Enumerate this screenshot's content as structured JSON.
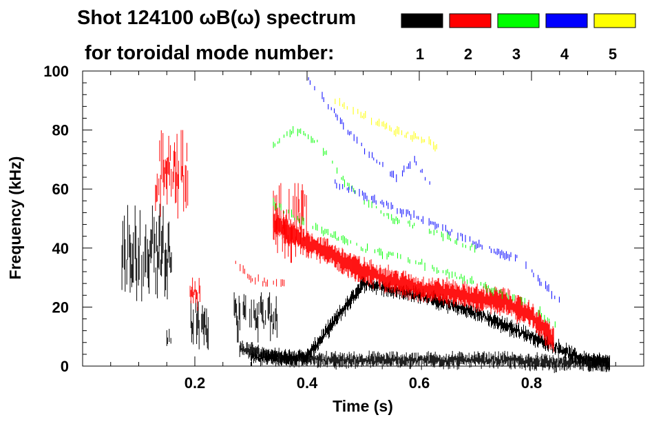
{
  "chart_data": {
    "type": "spectrogram",
    "title_line1": "Shot 124100 ωB(ω) spectrum",
    "title_line2": "for toroidal mode number:",
    "xlabel": "Time (s)",
    "ylabel": "Frequency (kHz)",
    "xlim": [
      0.0,
      1.0
    ],
    "ylim": [
      0,
      100
    ],
    "x_ticks": [
      0.2,
      0.4,
      0.6,
      0.8
    ],
    "x_tick_labels": [
      "0.2",
      "0.4",
      "0.6",
      "0.8"
    ],
    "y_ticks": [
      0,
      20,
      40,
      60,
      80,
      100
    ],
    "y_tick_labels": [
      "0",
      "20",
      "40",
      "60",
      "80",
      "100"
    ],
    "legend": [
      {
        "label": "1",
        "color": "#000000"
      },
      {
        "label": "2",
        "color": "#ff0000"
      },
      {
        "label": "3",
        "color": "#00ff00"
      },
      {
        "label": "4",
        "color": "#0000ff"
      },
      {
        "label": "5",
        "color": "#ffff00"
      }
    ],
    "series": [
      {
        "name": "n=1",
        "color": "#000000",
        "blobs": [
          {
            "t": [
              0.07,
              0.16
            ],
            "f": [
              20,
              55
            ]
          },
          {
            "t": [
              0.19,
              0.225
            ],
            "f": [
              5,
              25
            ]
          },
          {
            "t": [
              0.27,
              0.35
            ],
            "f": [
              8,
              25
            ]
          },
          {
            "t": [
              0.15,
              0.16
            ],
            "f": [
              5,
              15
            ]
          }
        ],
        "ridges": [
          {
            "name": "slow-down",
            "t": [
              0.3,
              0.4,
              0.5,
              0.55,
              0.6,
              0.7,
              0.75,
              0.8,
              0.85,
              0.88,
              0.94
            ],
            "f": [
              3,
              3,
              28,
              26,
              24,
              18,
              14,
              10,
              6,
              3,
              1
            ]
          },
          {
            "name": "base",
            "t": [
              0.28,
              0.35,
              0.45,
              0.55,
              0.65,
              0.75,
              0.85,
              0.94
            ],
            "f": [
              6,
              3,
              2,
              2,
              2,
              2,
              1,
              1
            ]
          }
        ]
      },
      {
        "name": "n=2",
        "color": "#ff0000",
        "blobs": [
          {
            "t": [
              0.13,
              0.19
            ],
            "f": [
              50,
              80
            ]
          },
          {
            "t": [
              0.19,
              0.21
            ],
            "f": [
              18,
              30
            ]
          },
          {
            "t": [
              0.34,
              0.4
            ],
            "f": [
              35,
              62
            ]
          }
        ],
        "ridges": [
          {
            "name": "main",
            "t": [
              0.34,
              0.4,
              0.45,
              0.5,
              0.55,
              0.6,
              0.65,
              0.7,
              0.75,
              0.8,
              0.84
            ],
            "f": [
              48,
              42,
              37,
              32,
              29,
              26,
              25,
              23,
              22,
              17,
              9
            ]
          },
          {
            "name": "early",
            "t": [
              0.27,
              0.3,
              0.33,
              0.36
            ],
            "f": [
              35,
              30,
              28,
              28
            ]
          }
        ]
      },
      {
        "name": "n=3",
        "color": "#00ff00",
        "ridges": [
          {
            "name": "upper",
            "t": [
              0.34,
              0.38,
              0.42,
              0.46,
              0.5,
              0.55,
              0.6,
              0.66,
              0.7
            ],
            "f": [
              75,
              80,
              76,
              64,
              56,
              50,
              47,
              43,
              40
            ]
          },
          {
            "name": "lower",
            "t": [
              0.34,
              0.4,
              0.5,
              0.6,
              0.7,
              0.8,
              0.85
            ],
            "f": [
              55,
              48,
              40,
              35,
              28,
              21,
              12
            ]
          }
        ]
      },
      {
        "name": "n=4",
        "color": "#0000ff",
        "ridges": [
          {
            "name": "upper",
            "t": [
              0.4,
              0.44,
              0.48,
              0.52,
              0.56,
              0.59,
              0.62
            ],
            "f": [
              98,
              88,
              78,
              70,
              64,
              70,
              61
            ]
          },
          {
            "name": "lower",
            "t": [
              0.45,
              0.55,
              0.65,
              0.72,
              0.78,
              0.86
            ],
            "f": [
              62,
              54,
              46,
              40,
              36,
              20
            ]
          }
        ]
      },
      {
        "name": "n=5",
        "color": "#ffff00",
        "ridges": [
          {
            "name": "upper",
            "t": [
              0.45,
              0.5,
              0.55,
              0.62,
              0.64
            ],
            "f": [
              90,
              85,
              80,
              76,
              72
            ]
          }
        ]
      }
    ]
  }
}
